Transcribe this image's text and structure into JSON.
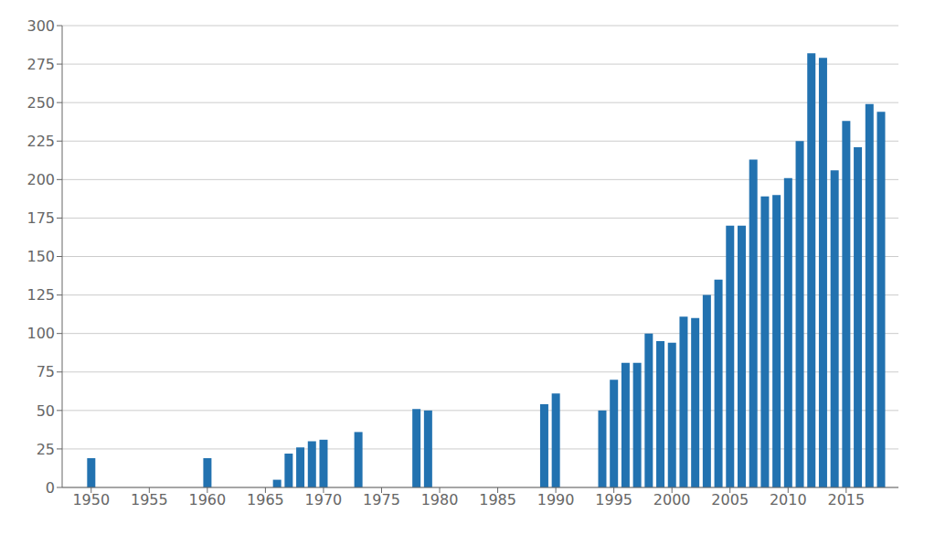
{
  "chart_data": {
    "type": "bar",
    "x": [
      1950,
      1960,
      1966,
      1967,
      1968,
      1969,
      1970,
      1973,
      1978,
      1979,
      1989,
      1990,
      1994,
      1995,
      1996,
      1997,
      1998,
      1999,
      2000,
      2001,
      2002,
      2003,
      2004,
      2005,
      2006,
      2007,
      2008,
      2009,
      2010,
      2011,
      2012,
      2013,
      2014,
      2015,
      2016,
      2017,
      2018
    ],
    "values": [
      19,
      19,
      5,
      22,
      26,
      30,
      31,
      36,
      51,
      50,
      54,
      61,
      50,
      70,
      81,
      81,
      100,
      95,
      94,
      111,
      110,
      125,
      135,
      170,
      170,
      213,
      189,
      190,
      201,
      225,
      282,
      279,
      206,
      238,
      221,
      249,
      244
    ],
    "color": "#2272b0",
    "xlim": [
      1947.5,
      2019.5
    ],
    "xticks": [
      1950,
      1955,
      1960,
      1965,
      1970,
      1975,
      1980,
      1985,
      1990,
      1995,
      2000,
      2005,
      2010,
      2015
    ],
    "ylim": [
      0,
      300
    ],
    "yticks": [
      0,
      25,
      50,
      75,
      100,
      125,
      150,
      175,
      200,
      225,
      250,
      275,
      300
    ],
    "grid": true
  }
}
